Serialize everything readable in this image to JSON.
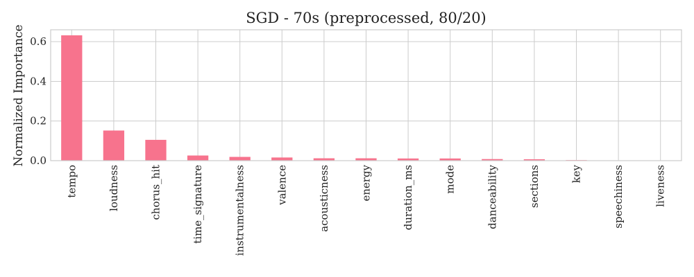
{
  "chart_data": {
    "type": "bar",
    "title": "SGD - 70s (preprocessed, 80/20)",
    "xlabel": "",
    "ylabel": "Normalized Importance",
    "ylim": [
      0,
      0.66
    ],
    "yticks": [
      "0.0",
      "0.2",
      "0.4",
      "0.6"
    ],
    "grid": true,
    "bar_color": "#f7738d",
    "categories": [
      "tempo",
      "loudness",
      "chorus_hit",
      "time_signature",
      "instrumentalness",
      "valence",
      "acousticness",
      "energy",
      "duration_ms",
      "mode",
      "danceability",
      "sections",
      "key",
      "speechiness",
      "liveness"
    ],
    "values": [
      0.632,
      0.152,
      0.105,
      0.026,
      0.019,
      0.016,
      0.012,
      0.012,
      0.011,
      0.011,
      0.008,
      0.007,
      0.003,
      0.0,
      0.0
    ]
  }
}
